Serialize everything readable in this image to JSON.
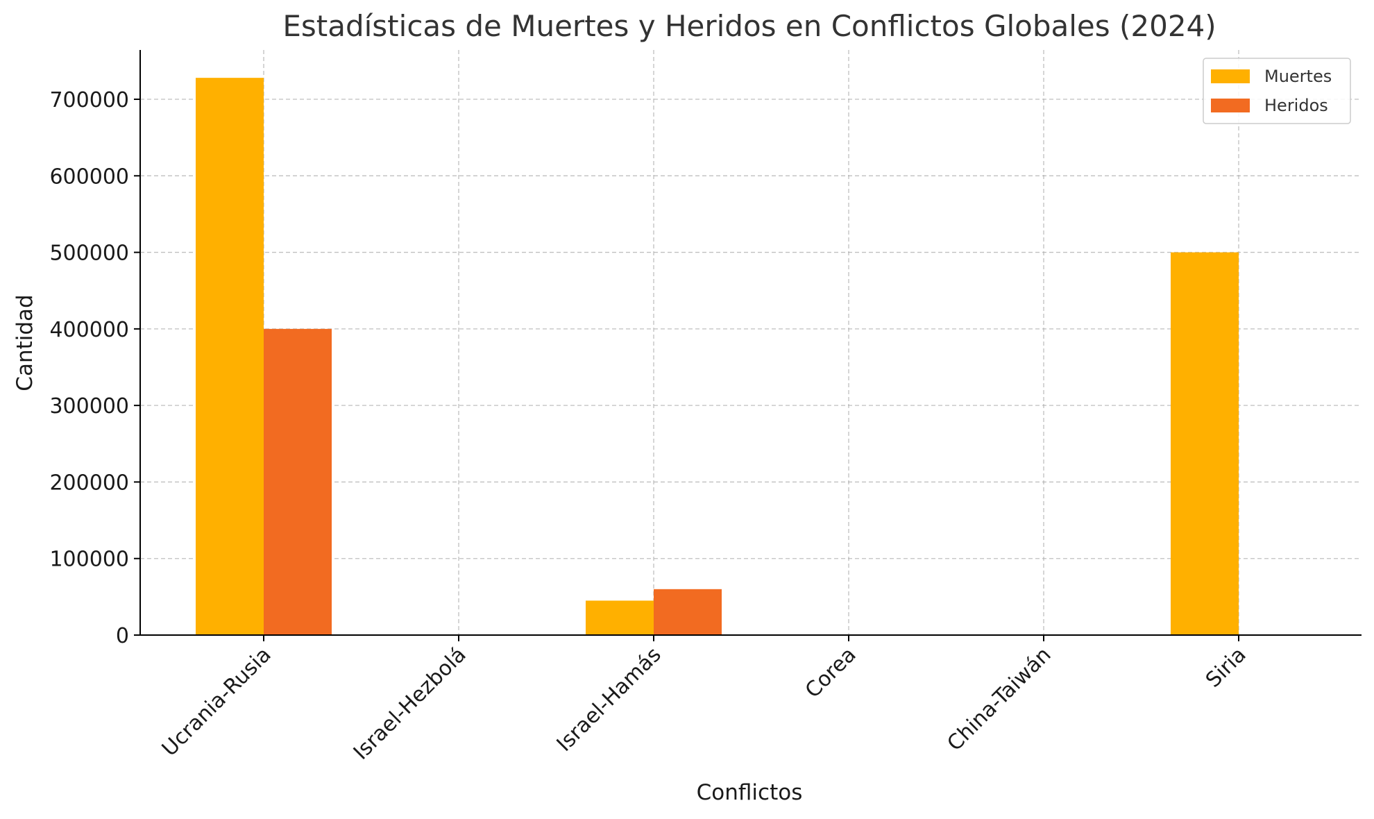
{
  "chart_data": {
    "type": "bar",
    "title": "Estadísticas de Muertes y Heridos en Conflictos Globales (2024)",
    "xlabel": "Conflictos",
    "ylabel": "Cantidad",
    "categories": [
      "Ucrania-Rusia",
      "Israel-Hezbolá",
      "Israel-Hamás",
      "Corea",
      "China-Taiwán",
      "Siria"
    ],
    "series": [
      {
        "name": "Muertes",
        "color": "#FFB000",
        "values": [
          728000,
          0,
          45000,
          0,
          0,
          500000
        ]
      },
      {
        "name": "Heridos",
        "color": "#F26B21",
        "values": [
          400000,
          0,
          60000,
          0,
          0,
          0
        ]
      }
    ],
    "yticks": [
      "0",
      "100000",
      "200000",
      "300000",
      "400000",
      "500000",
      "600000",
      "700000"
    ],
    "ylim": [
      0,
      764400
    ],
    "grid": true,
    "legend": "top-right"
  }
}
